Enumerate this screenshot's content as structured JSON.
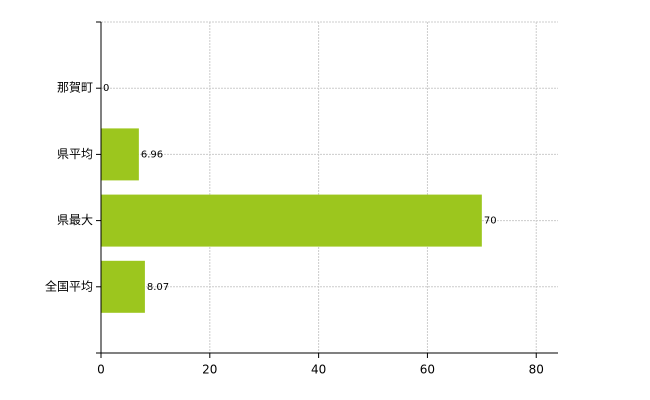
{
  "chart_data": {
    "type": "bar",
    "orientation": "horizontal",
    "categories": [
      "那賀町",
      "県平均",
      "県最大",
      "全国平均"
    ],
    "values": [
      0,
      6.96,
      70,
      8.07
    ],
    "color": "#9cc61e",
    "xlim": [
      0,
      84
    ],
    "xticks": [
      0,
      20,
      40,
      60,
      80
    ],
    "grid": true
  }
}
